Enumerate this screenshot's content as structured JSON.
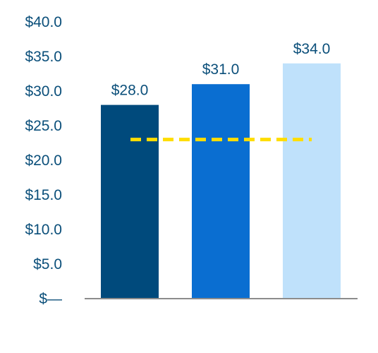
{
  "chart_data": {
    "type": "bar",
    "categories": [
      "",
      "",
      ""
    ],
    "values": [
      28.0,
      31.0,
      34.0
    ],
    "value_labels": [
      "$28.0",
      "$31.0",
      "$34.0"
    ],
    "bar_colors": [
      "#004a7c",
      "#0a6ed1",
      "#bfe1fb"
    ],
    "reference_line": {
      "value": 23.0,
      "color": "#ffdd00",
      "style": "dashed"
    },
    "ylim": [
      0,
      40
    ],
    "y_ticks": [
      0,
      5,
      10,
      15,
      20,
      25,
      30,
      35,
      40
    ],
    "y_tick_labels": [
      "$—",
      "$5.0",
      "$10.0",
      "$15.0",
      "$20.0",
      "$25.0",
      "$30.0",
      "$35.0",
      "$40.0"
    ],
    "axis_color": "#8c8c8c",
    "text_color": "#0b4f7a",
    "grid": false,
    "title": "",
    "xlabel": "",
    "ylabel": ""
  }
}
